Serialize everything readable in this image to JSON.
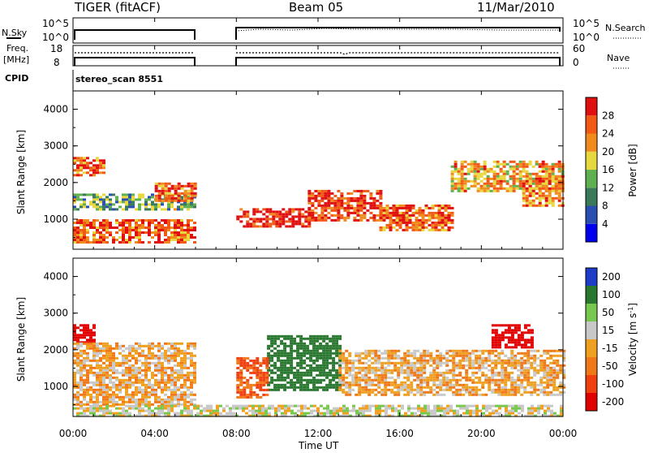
{
  "header": {
    "radar": "TIGER (fitACF)",
    "beam": "Beam 05",
    "date": "11/Mar/2010"
  },
  "left_labels": {
    "nsky": "N.Sky",
    "freq_line1": "Freq.",
    "freq_line2": "[MHz]",
    "cpid": "CPID"
  },
  "right_labels": {
    "nsearch": "N.Search",
    "nave": "Nave"
  },
  "cpid_value": "stereo_scan 8551",
  "noise_ticks": {
    "top": "10^5",
    "bottom": "10^0"
  },
  "freq_ticks": {
    "top": "18",
    "bottom": "8"
  },
  "nave_ticks": {
    "top": "60",
    "bottom": "0"
  },
  "x_axis": {
    "title": "Time UT",
    "ticks": [
      "00:00",
      "04:00",
      "08:00",
      "12:00",
      "16:00",
      "20:00",
      "00:00"
    ]
  },
  "power_panel": {
    "ylabel": "Slant Range [km]",
    "yticks": [
      "1000",
      "2000",
      "3000",
      "4000"
    ],
    "colorbar_label": "Power [dB]",
    "colorbar_ticks": [
      "4",
      "8",
      "12",
      "16",
      "20",
      "24",
      "28"
    ]
  },
  "velocity_panel": {
    "ylabel": "Slant Range [km]",
    "yticks": [
      "1000",
      "2000",
      "3000",
      "4000"
    ],
    "colorbar_label": "Velocity [m s",
    "colorbar_label_sup": "-1",
    "colorbar_label_end": "]",
    "colorbar_ticks": [
      "200",
      "100",
      "50",
      "15",
      "-15",
      "-50",
      "-100",
      "-200"
    ]
  },
  "colors": {
    "power_scale": [
      "#0000ee",
      "#2b4fb0",
      "#3a7a5a",
      "#5fb050",
      "#e8d840",
      "#f08c1e",
      "#f05a14",
      "#e01010"
    ],
    "velocity_scale": [
      "#1e3cc8",
      "#2a7830",
      "#78c850",
      "#c8c8c8",
      "#f0a020",
      "#f07818",
      "#f04010",
      "#e00000"
    ]
  },
  "chart_data": [
    {
      "type": "heatmap",
      "title": "Power",
      "xlabel": "Time UT",
      "ylabel": "Slant Range [km]",
      "xlim": [
        "00:00",
        "24:00"
      ],
      "ylim": [
        180,
        4500
      ],
      "data_gap": [
        "06:00",
        "07:50"
      ],
      "colorbar": {
        "label": "Power [dB]",
        "range": [
          0,
          30
        ]
      },
      "regions": [
        {
          "t": [
            0.0,
            6.0
          ],
          "r": [
            400,
            1000
          ],
          "value": 24
        },
        {
          "t": [
            0.0,
            6.0
          ],
          "r": [
            1300,
            1700
          ],
          "value": 12
        },
        {
          "t": [
            4.0,
            6.0
          ],
          "r": [
            1500,
            2000
          ],
          "value": 24
        },
        {
          "t": [
            0.0,
            1.5
          ],
          "r": [
            2200,
            2700
          ],
          "value": 24
        },
        {
          "t": [
            8.0,
            11.5
          ],
          "r": [
            800,
            1300
          ],
          "value": 28
        },
        {
          "t": [
            11.5,
            15.0
          ],
          "r": [
            1000,
            1800
          ],
          "value": 26
        },
        {
          "t": [
            15.0,
            18.5
          ],
          "r": [
            700,
            1400
          ],
          "value": 24
        },
        {
          "t": [
            18.5,
            24.0
          ],
          "r": [
            1800,
            2600
          ],
          "value": 20
        },
        {
          "t": [
            22.0,
            24.0
          ],
          "r": [
            1400,
            2200
          ],
          "value": 22
        }
      ]
    },
    {
      "type": "heatmap",
      "title": "Velocity",
      "xlabel": "Time UT",
      "ylabel": "Slant Range [km]",
      "xlim": [
        "00:00",
        "24:00"
      ],
      "ylim": [
        180,
        4500
      ],
      "data_gap": [
        "06:00",
        "07:50"
      ],
      "colorbar": {
        "label": "Velocity [m s-1]",
        "range": [
          -200,
          200
        ]
      },
      "regions": [
        {
          "t": [
            0.0,
            1.0
          ],
          "r": [
            2200,
            2700
          ],
          "value": -200
        },
        {
          "t": [
            0.0,
            6.0
          ],
          "r": [
            500,
            2200
          ],
          "value": 0
        },
        {
          "t": [
            9.5,
            13.0
          ],
          "r": [
            900,
            2400
          ],
          "value": 150
        },
        {
          "t": [
            8.0,
            9.5
          ],
          "r": [
            700,
            1800
          ],
          "value": -60
        },
        {
          "t": [
            13.0,
            24.0
          ],
          "r": [
            800,
            2000
          ],
          "value": 0
        },
        {
          "t": [
            20.5,
            22.5
          ],
          "r": [
            2100,
            2700
          ],
          "value": -200
        },
        {
          "t": [
            0.0,
            24.0
          ],
          "r": [
            200,
            500
          ],
          "value": 30
        }
      ]
    }
  ]
}
